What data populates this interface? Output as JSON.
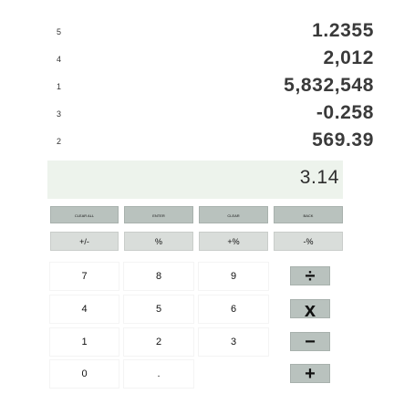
{
  "stack": [
    {
      "index": "5",
      "value": "1.2355"
    },
    {
      "index": "4",
      "value": "2,012"
    },
    {
      "index": "1",
      "value": "5,832,548"
    },
    {
      "index": "3",
      "value": "-0.258"
    },
    {
      "index": "2",
      "value": "569.39"
    }
  ],
  "entry": {
    "value": "3.14"
  },
  "function_keys": {
    "clear_all": "CLEAR ALL",
    "enter": "ENTER",
    "clear": "CLEAR",
    "back": "BACK"
  },
  "secondary_keys": {
    "negate": "+/-",
    "percent": "%",
    "percent_add": "+%",
    "percent_sub": "-%"
  },
  "digits": {
    "seven": "7",
    "eight": "8",
    "nine": "9",
    "four": "4",
    "five": "5",
    "six": "6",
    "one": "1",
    "two": "2",
    "three": "3",
    "zero": "0",
    "decimal": "."
  },
  "operators": {
    "divide": "÷",
    "multiply": "x",
    "subtract": "−",
    "add": "+"
  },
  "colors": {
    "function_key_bg": "#b9c2be",
    "secondary_key_bg": "#d9ddda",
    "entry_bg": "#edf3ec"
  }
}
